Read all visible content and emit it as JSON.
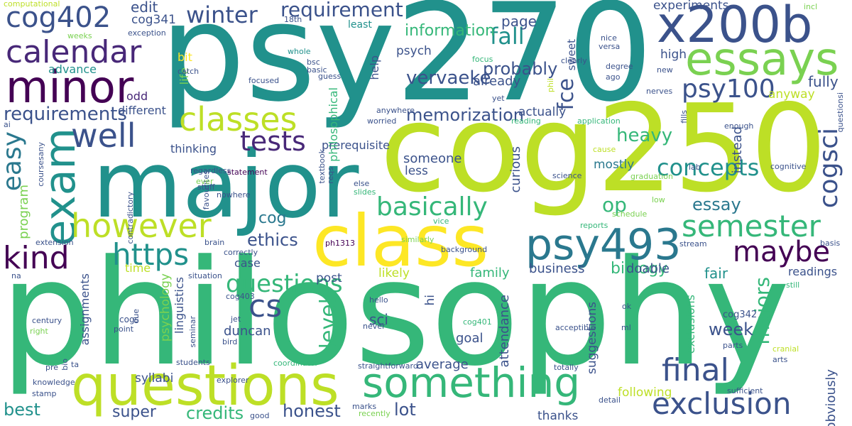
{
  "palette": {
    "teal": "#21918c",
    "green": "#35b779",
    "lime": "#bddf26",
    "blue": "#3b528b",
    "purple": "#482878",
    "dark": "#440154",
    "yellow": "#fde725",
    "light_green": "#7ad151",
    "cyan": "#2a788e"
  },
  "words": [
    {
      "text": "psy270"
    },
    {
      "text": "cog250"
    },
    {
      "text": "philosophy"
    },
    {
      "text": "major"
    },
    {
      "text": "class"
    },
    {
      "text": "questions"
    },
    {
      "text": "x200b"
    },
    {
      "text": "something"
    },
    {
      "text": "essays"
    },
    {
      "text": "psy493"
    },
    {
      "text": "minor"
    },
    {
      "text": "exam"
    },
    {
      "text": "exclusion"
    },
    {
      "text": "calendar"
    },
    {
      "text": "cog402"
    },
    {
      "text": "however"
    },
    {
      "text": "semester"
    },
    {
      "text": "final"
    },
    {
      "text": "classes"
    },
    {
      "text": "well"
    },
    {
      "text": "kind"
    },
    {
      "text": "maybe"
    },
    {
      "text": "https"
    },
    {
      "text": "cogsci"
    },
    {
      "text": "basically"
    },
    {
      "text": "winter"
    },
    {
      "text": "requirement"
    },
    {
      "text": "tests"
    },
    {
      "text": "easy"
    },
    {
      "text": "cs"
    },
    {
      "text": "psy100"
    },
    {
      "text": "questions"
    },
    {
      "text": "fall"
    },
    {
      "text": "op"
    },
    {
      "text": "concepts"
    },
    {
      "text": "fce"
    },
    {
      "text": "essay"
    },
    {
      "text": "memorization"
    },
    {
      "text": "vervaeke"
    },
    {
      "text": "lot"
    },
    {
      "text": "requirements"
    },
    {
      "text": "probably"
    },
    {
      "text": "level"
    },
    {
      "text": "heavy"
    },
    {
      "text": "best"
    },
    {
      "text": "majors"
    },
    {
      "text": "credits"
    },
    {
      "text": "ethics"
    },
    {
      "text": "week"
    },
    {
      "text": "cog"
    },
    {
      "text": "honest"
    },
    {
      "text": "thanks"
    },
    {
      "text": "information"
    },
    {
      "text": "page"
    },
    {
      "text": "fully"
    },
    {
      "text": "edit"
    },
    {
      "text": "super"
    },
    {
      "text": "biology"
    },
    {
      "text": "sci"
    },
    {
      "text": "fair"
    },
    {
      "text": "duncan"
    },
    {
      "text": "already"
    },
    {
      "text": "readings"
    },
    {
      "text": "someone"
    },
    {
      "text": "mostly"
    },
    {
      "text": "less"
    },
    {
      "text": "anyway"
    },
    {
      "text": "instead"
    },
    {
      "text": "obviously"
    },
    {
      "text": "actually"
    },
    {
      "text": "doable"
    },
    {
      "text": "family"
    },
    {
      "text": "business"
    },
    {
      "text": "psych"
    },
    {
      "text": "cog341"
    },
    {
      "text": "curious"
    },
    {
      "text": "program"
    },
    {
      "text": "average"
    },
    {
      "text": "likely"
    },
    {
      "text": "different"
    },
    {
      "text": "advance"
    },
    {
      "text": "prerequisite"
    },
    {
      "text": "thinking"
    },
    {
      "text": "syllabi"
    },
    {
      "text": "post"
    },
    {
      "text": "case"
    },
    {
      "text": "time"
    },
    {
      "text": "goal"
    },
    {
      "text": "hi"
    },
    {
      "text": "attendance"
    },
    {
      "text": "suggestions"
    },
    {
      "text": "following"
    },
    {
      "text": "exclusions"
    },
    {
      "text": "experiments"
    },
    {
      "text": "high"
    },
    {
      "text": "bit"
    },
    {
      "text": "life"
    },
    {
      "text": "psychology"
    },
    {
      "text": "linguistics"
    },
    {
      "text": "assignments"
    },
    {
      "text": "philosophical"
    },
    {
      "text": "sweet"
    },
    {
      "text": "least"
    },
    {
      "text": "help"
    },
    {
      "text": "odd"
    },
    {
      "text": "yet"
    },
    {
      "text": "lab"
    },
    {
      "text": "cog401"
    },
    {
      "text": "cog342"
    },
    {
      "text": "ph1313"
    },
    {
      "text": "cog403"
    },
    {
      "text": "cogs"
    },
    {
      "text": "reqs"
    },
    {
      "text": "textbook"
    },
    {
      "text": "computational"
    },
    {
      "text": "18th"
    },
    {
      "text": "incl"
    },
    {
      "text": "weeks"
    },
    {
      "text": "exception"
    },
    {
      "text": "whole"
    },
    {
      "text": "catch"
    },
    {
      "text": "bsc"
    },
    {
      "text": "basic"
    },
    {
      "text": "guess"
    },
    {
      "text": "focus"
    },
    {
      "text": "focused"
    },
    {
      "text": "anywhere"
    },
    {
      "text": "worried"
    },
    {
      "text": "clearly"
    },
    {
      "text": "phil"
    },
    {
      "text": "degree"
    },
    {
      "text": "ago"
    },
    {
      "text": "new"
    },
    {
      "text": "nerves"
    },
    {
      "text": "nice"
    },
    {
      "text": "versa"
    },
    {
      "text": "reading"
    },
    {
      "text": "application"
    },
    {
      "text": "cause"
    },
    {
      "text": "enough"
    },
    {
      "text": "fills"
    },
    {
      "text": "questionsi"
    },
    {
      "text": "coursesany"
    },
    {
      "text": "ai"
    },
    {
      "text": "regardless"
    },
    {
      "text": "statement"
    },
    {
      "text": "favourites"
    },
    {
      "text": "contradictory"
    },
    {
      "text": "ever"
    },
    {
      "text": "stuff"
    },
    {
      "text": "nowhere"
    },
    {
      "text": "else"
    },
    {
      "text": "slides"
    },
    {
      "text": "science"
    },
    {
      "text": "graduation"
    },
    {
      "text": "cognitive"
    },
    {
      "text": "low"
    },
    {
      "text": "extension"
    },
    {
      "text": "brain"
    },
    {
      "text": "correctly"
    },
    {
      "text": "similarly"
    },
    {
      "text": "vice"
    },
    {
      "text": "schedule"
    },
    {
      "text": "reports"
    },
    {
      "text": "stream"
    },
    {
      "text": "background"
    },
    {
      "text": "na"
    },
    {
      "text": "situation"
    },
    {
      "text": "basis"
    },
    {
      "text": "still"
    },
    {
      "text": "hello"
    },
    {
      "text": "never"
    },
    {
      "text": "century"
    },
    {
      "text": "right"
    },
    {
      "text": "point"
    },
    {
      "text": "due"
    },
    {
      "text": "jet"
    },
    {
      "text": "bird"
    },
    {
      "text": "seminar"
    },
    {
      "text": "acceptible"
    },
    {
      "text": "ml"
    },
    {
      "text": "ok"
    },
    {
      "text": "parts"
    },
    {
      "text": "cranial"
    },
    {
      "text": "arts"
    },
    {
      "text": "pre"
    },
    {
      "text": "bio"
    },
    {
      "text": "ta"
    },
    {
      "text": "students"
    },
    {
      "text": "coordinator"
    },
    {
      "text": "straightforward"
    },
    {
      "text": "totally"
    },
    {
      "text": "knowledge"
    },
    {
      "text": "explorer"
    },
    {
      "text": "stamp"
    },
    {
      "text": "marks"
    },
    {
      "text": "recently"
    },
    {
      "text": "good"
    },
    {
      "text": "detail"
    },
    {
      "text": "sufficient"
    },
    {
      "text": "fault"
    }
  ]
}
